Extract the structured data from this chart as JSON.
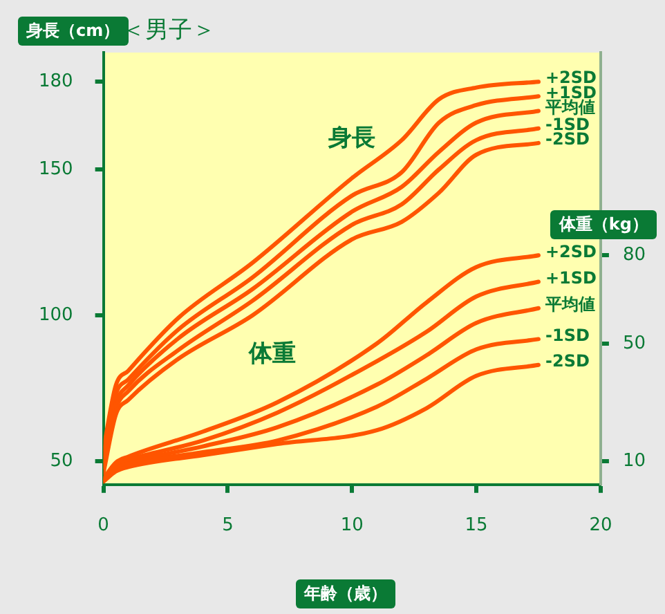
{
  "chart_data": {
    "type": "line",
    "title": "＜男子＞",
    "xlabel": "年齢（歳）",
    "ylabel": "身長（cm）",
    "y2label": "体重（kg）",
    "xlim": [
      0,
      20
    ],
    "xticks": [
      0,
      5,
      10,
      15,
      20
    ],
    "ylim": [
      42,
      190
    ],
    "yticks": [
      50,
      100,
      150,
      180
    ],
    "y2lim": [
      2,
      149
    ],
    "y2ticks": [
      10,
      50,
      80
    ],
    "grid": false,
    "legend": false,
    "marker": "none",
    "line_style": "solid",
    "annotations": [
      "身長",
      "体重"
    ],
    "series": [
      {
        "name": "+2SD",
        "color": "#ff5500",
        "x": [
          0,
          0.5,
          1,
          3,
          6,
          10,
          12,
          13.5,
          15,
          17.5
        ],
        "values": [
          54,
          76,
          81,
          99,
          118,
          147,
          160,
          174,
          178,
          180
        ]
      },
      {
        "name": "+1SD",
        "color": "#ff5500",
        "x": [
          0,
          0.5,
          1,
          3,
          6,
          10,
          12,
          13.5,
          15,
          17.5
        ],
        "values": [
          52,
          73,
          78,
          95,
          113,
          141,
          149,
          166,
          172,
          175
        ]
      },
      {
        "name": "平均値",
        "color": "#ff5500",
        "x": [
          0,
          0.5,
          1,
          3,
          6,
          10,
          12,
          13.5,
          15,
          17.5
        ],
        "values": [
          50,
          70,
          76,
          92,
          109,
          135.5,
          144,
          156,
          166,
          170
        ]
      },
      {
        "name": "-1SD",
        "color": "#ff5500",
        "x": [
          0,
          0.5,
          1,
          3,
          6,
          10,
          12,
          13.5,
          15,
          17.5
        ],
        "values": [
          48,
          68,
          74,
          88,
          105,
          131,
          138,
          150,
          160,
          164
        ]
      },
      {
        "name": "-2SD",
        "color": "#ff5500",
        "x": [
          0,
          0.5,
          1,
          3,
          6,
          10,
          12,
          13.5,
          15,
          17.5
        ],
        "values": [
          46,
          66,
          71,
          85,
          100,
          126,
          132,
          142,
          155,
          159
        ]
      },
      {
        "name": "+2SD",
        "color": "#ff5500",
        "axis": "y2",
        "x": [
          0,
          0.5,
          1,
          4,
          7,
          11,
          13,
          15,
          17.5
        ],
        "values": [
          4,
          9.5,
          11.5,
          20,
          30,
          50,
          64,
          76,
          80
        ]
      },
      {
        "name": "+1SD",
        "color": "#ff5500",
        "axis": "y2",
        "x": [
          0,
          0.5,
          1,
          4,
          7,
          11,
          13,
          15,
          17.5
        ],
        "values": [
          3.8,
          9,
          10.5,
          17,
          26.5,
          44,
          54,
          66,
          71
        ]
      },
      {
        "name": "平均値",
        "color": "#ff5500",
        "axis": "y2",
        "x": [
          0,
          0.5,
          1,
          4,
          7,
          11,
          13,
          15,
          17.5
        ],
        "values": [
          3.5,
          8,
          9.5,
          15,
          21.5,
          36,
          46,
          57,
          62
        ]
      },
      {
        "name": "-1SD",
        "color": "#ff5500",
        "axis": "y2",
        "x": [
          0,
          0.5,
          1,
          4,
          7,
          11,
          13,
          15,
          17.5
        ],
        "values": [
          3.2,
          7.3,
          8.8,
          13,
          17,
          28.5,
          38,
          48,
          51.5
        ]
      },
      {
        "name": "-2SD",
        "color": "#ff5500",
        "axis": "y2",
        "x": [
          0,
          0.5,
          1,
          4,
          7,
          11,
          13,
          15,
          17.5
        ],
        "values": [
          3,
          6.5,
          8,
          12,
          15.8,
          20.5,
          28,
          39,
          42.7
        ]
      }
    ]
  }
}
